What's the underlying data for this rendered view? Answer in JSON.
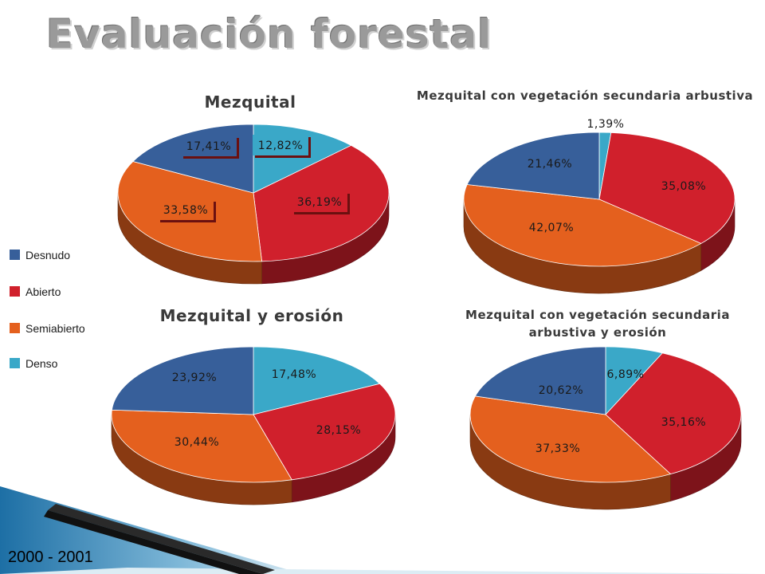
{
  "slide": {
    "title": "Evaluación forestal",
    "footer": "2000 - 2001"
  },
  "legend": {
    "items": [
      {
        "label": "Desnudo",
        "color": "#375f9a"
      },
      {
        "label": "Abierto",
        "color": "#d0202c"
      },
      {
        "label": "Semiabierto",
        "color": "#e4601e"
      },
      {
        "label": "Denso",
        "color": "#3aa8c8"
      }
    ]
  },
  "chart_data": [
    {
      "type": "pie",
      "title": "Mezquital",
      "categories": [
        "Denso",
        "Abierto",
        "Semiabierto",
        "Desnudo"
      ],
      "values": [
        12.82,
        36.19,
        33.58,
        17.41
      ],
      "labels": [
        "12,82%",
        "36,19%",
        "33,58%",
        "17,41%"
      ],
      "style": "3d"
    },
    {
      "type": "pie",
      "title": "Mezquital con vegetación secundaria arbustiva",
      "categories": [
        "Denso",
        "Abierto",
        "Semiabierto",
        "Desnudo"
      ],
      "values": [
        1.39,
        35.08,
        42.07,
        21.46
      ],
      "labels": [
        "1,39%",
        "35,08%",
        "42,07%",
        "21,46%"
      ],
      "style": "3d"
    },
    {
      "type": "pie",
      "title": "Mezquital y erosión",
      "categories": [
        "Denso",
        "Abierto",
        "Semiabierto",
        "Desnudo"
      ],
      "values": [
        17.48,
        28.15,
        30.44,
        23.92
      ],
      "labels": [
        "17,48%",
        "28,15%",
        "30,44%",
        "23,92%"
      ],
      "style": "3d"
    },
    {
      "type": "pie",
      "title": "Mezquital con vegetación secundaria arbustiva y erosión",
      "categories": [
        "Denso",
        "Abierto",
        "Semiabierto",
        "Desnudo"
      ],
      "values": [
        6.89,
        35.16,
        37.33,
        20.62
      ],
      "labels": [
        "6,89%",
        "35,16%",
        "37,33%",
        "20,62%"
      ],
      "style": "3d"
    }
  ]
}
